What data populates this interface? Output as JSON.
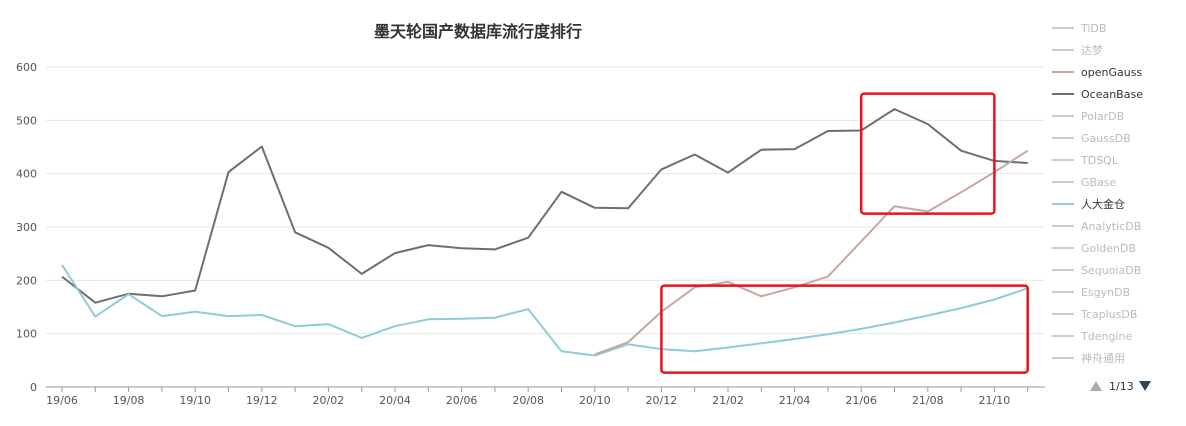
{
  "chart_data": {
    "type": "line",
    "title": "墨天轮国产数据库流行度排行",
    "xlabel": "",
    "ylabel": "",
    "ylim": [
      0,
      600
    ],
    "yticks": [
      0,
      100,
      200,
      300,
      400,
      500,
      600
    ],
    "grid": true,
    "legend_position": "right",
    "x": [
      "19/06",
      "19/07",
      "19/08",
      "19/09",
      "19/10",
      "19/11",
      "19/12",
      "20/01",
      "20/02",
      "20/03",
      "20/04",
      "20/05",
      "20/06",
      "20/07",
      "20/08",
      "20/09",
      "20/10",
      "20/11",
      "20/12",
      "21/01",
      "21/02",
      "21/03",
      "21/04",
      "21/05",
      "21/06",
      "21/07",
      "21/08",
      "21/09",
      "21/10",
      "21/11"
    ],
    "x_tick_labels": [
      "19/06",
      "19/08",
      "19/10",
      "19/12",
      "20/02",
      "20/04",
      "20/06",
      "20/08",
      "20/10",
      "20/12",
      "21/02",
      "21/04",
      "21/06",
      "21/08",
      "21/10"
    ],
    "series": [
      {
        "name": "OceanBase",
        "color": "#6e6e6e",
        "values": [
          207,
          158,
          175,
          170,
          181,
          403,
          451,
          290,
          261,
          212,
          251,
          266,
          260,
          258,
          280,
          366,
          336,
          335,
          408,
          436,
          402,
          445,
          446,
          480,
          481,
          521,
          493,
          443,
          424,
          420
        ]
      },
      {
        "name": "人大金仓",
        "color": "#91cbd6",
        "values": [
          229,
          132,
          174,
          133,
          141,
          133,
          135,
          114,
          118,
          92,
          114,
          127,
          128,
          130,
          146,
          67,
          59,
          80,
          71,
          67,
          74,
          82,
          90,
          99,
          109,
          121,
          134,
          148,
          164,
          185
        ]
      },
      {
        "name": "openGauss",
        "color": "#c9a69e",
        "values": [
          null,
          null,
          null,
          null,
          null,
          null,
          null,
          null,
          null,
          null,
          null,
          null,
          null,
          null,
          null,
          null,
          61,
          84,
          141,
          187,
          197,
          170,
          187,
          207,
          273,
          339,
          329,
          365,
          403,
          443
        ]
      }
    ],
    "legend": {
      "entries": [
        {
          "name": "TiDB",
          "active": false
        },
        {
          "name": "达梦",
          "active": false
        },
        {
          "name": "openGauss",
          "active": true,
          "color": "#c9a69e"
        },
        {
          "name": "OceanBase",
          "active": true,
          "color": "#6e6e6e"
        },
        {
          "name": "PolarDB",
          "active": false
        },
        {
          "name": "GaussDB",
          "active": false
        },
        {
          "name": "TDSQL",
          "active": false
        },
        {
          "name": "GBase",
          "active": false
        },
        {
          "name": "人大金仓",
          "active": true,
          "color": "#91cbd6"
        },
        {
          "name": "AnalyticDB",
          "active": false
        },
        {
          "name": "GoldenDB",
          "active": false
        },
        {
          "name": "SequoiaDB",
          "active": false
        },
        {
          "name": "EsgynDB",
          "active": false
        },
        {
          "name": "TcaplusDB",
          "active": false
        },
        {
          "name": "Tdengine",
          "active": false
        },
        {
          "name": "神舟通用",
          "active": false
        }
      ],
      "inactive_color": "#cccccc",
      "page_indicator": "1/13"
    },
    "highlight_boxes": [
      {
        "x_range": [
          "21/06",
          "21/10"
        ],
        "y_range": [
          325,
          550
        ]
      },
      {
        "x_range": [
          "20/12",
          "21/11"
        ],
        "y_range": [
          27,
          190
        ]
      }
    ],
    "highlight_color": "#e5141c"
  }
}
